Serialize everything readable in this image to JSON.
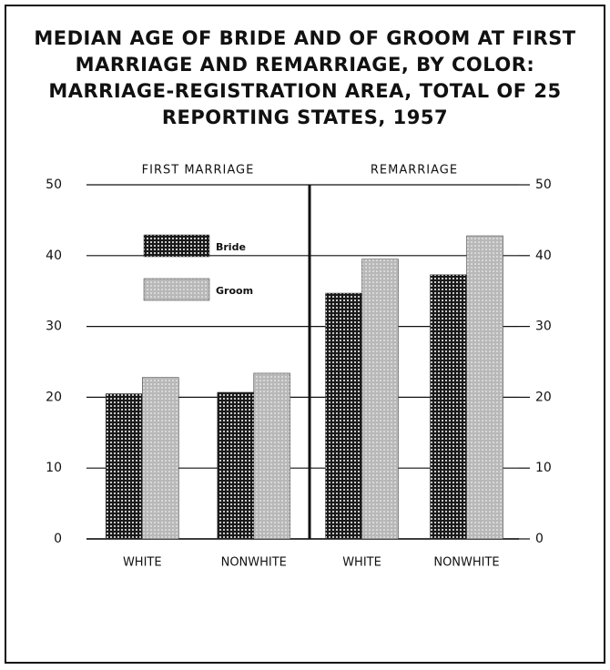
{
  "chart_data": {
    "type": "bar",
    "title": "MEDIAN AGE OF BRIDE AND OF GROOM AT FIRST MARRIAGE AND REMARRIAGE, BY COLOR: MARRIAGE-REGISTRATION AREA, TOTAL OF 25 REPORTING STATES, 1957",
    "groups": [
      "FIRST MARRIAGE",
      "REMARRIAGE"
    ],
    "categories": [
      "WHITE",
      "NONWHITE",
      "WHITE",
      "NONWHITE"
    ],
    "series": [
      {
        "name": "Bride",
        "color": "#1a1a1a",
        "values": [
          20.5,
          20.7,
          34.7,
          37.3
        ]
      },
      {
        "name": "Groom",
        "color": "#b8b8b8",
        "values": [
          22.8,
          23.4,
          39.5,
          42.8
        ]
      }
    ],
    "ylim": [
      0,
      50
    ],
    "yticks": [
      0,
      10,
      20,
      30,
      40,
      50
    ],
    "grid": true,
    "legend": "upper left"
  }
}
